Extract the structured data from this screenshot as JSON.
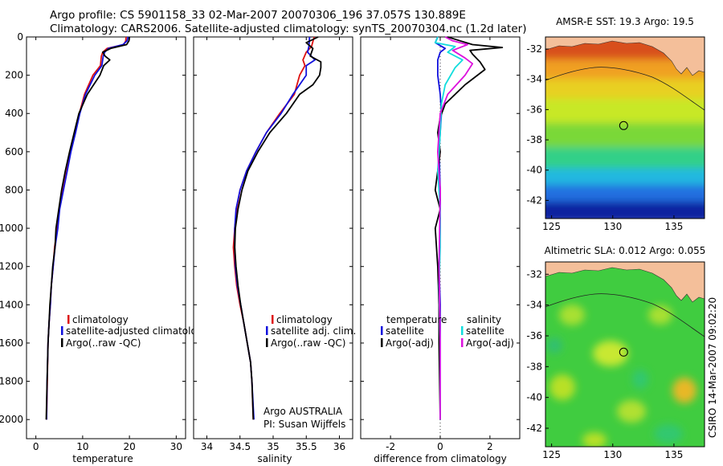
{
  "figure": {
    "title_line1": "Argo profile: CS 5901158_33 02-Mar-2007 20070306_196 37.057S 130.889E",
    "title_line2": "Climatology: CARS2006. Satellite-adjusted climatology: synTS_20070304.nc (1.2d later)",
    "stamp": "CSIRO 14-Mar-2007 09:02:20"
  },
  "colors": {
    "climatology": "#dd1111",
    "satellite": "#1111dd",
    "argo": "#000000",
    "sal_satellite": "#11dddd",
    "sal_argo": "#dd11dd",
    "land": "#f4bf9a"
  },
  "chart_data": [
    {
      "type": "line",
      "id": "temperature",
      "xlabel": "temperature",
      "ylabel": "",
      "xlim": [
        -2,
        32
      ],
      "ylim": [
        2100,
        0
      ],
      "xticks": [
        0,
        10,
        20,
        30
      ],
      "yticks": [
        0,
        200,
        400,
        600,
        800,
        1000,
        1200,
        1400,
        1600,
        1800,
        2000
      ],
      "legend_placement": "lower-left",
      "series": [
        {
          "name": "climatology",
          "color": "#dd1111",
          "x": [
            19.3,
            19.2,
            18.8,
            15.2,
            14.3,
            14.0,
            13.8,
            12.2,
            10.4,
            9.3,
            8.4,
            7.4,
            6.6,
            5.8,
            5.0,
            4.6,
            4.0,
            3.7,
            3.3,
            3.1,
            2.8,
            2.6,
            2.45,
            2.3
          ],
          "y": [
            0,
            20,
            40,
            60,
            80,
            100,
            150,
            200,
            300,
            400,
            500,
            600,
            700,
            800,
            900,
            1000,
            1100,
            1200,
            1300,
            1400,
            1500,
            1600,
            1800,
            2000
          ]
        },
        {
          "name": "satellite-adjusted climatology",
          "color": "#1111dd",
          "x": [
            19.7,
            19.5,
            18.6,
            15.5,
            14.7,
            14.4,
            14.1,
            12.6,
            10.6,
            9.4,
            8.5,
            7.5,
            6.7,
            5.9,
            5.1,
            4.7,
            4.1,
            3.7,
            3.3,
            3.1,
            2.8,
            2.6,
            2.4,
            2.3
          ],
          "y": [
            0,
            20,
            40,
            60,
            80,
            100,
            150,
            200,
            300,
            400,
            500,
            600,
            700,
            800,
            900,
            1000,
            1100,
            1200,
            1300,
            1400,
            1500,
            1600,
            1800,
            2000
          ]
        },
        {
          "name": "Argo(..raw -QC)",
          "color": "#000000",
          "x": [
            20.0,
            19.9,
            19.4,
            16.0,
            14.3,
            14.8,
            15.8,
            14.5,
            13.7,
            11.0,
            9.2,
            8.2,
            7.2,
            6.3,
            5.5,
            4.9,
            4.3,
            4.1,
            3.6,
            3.3,
            3.0,
            2.8,
            2.6,
            2.4,
            2.2
          ],
          "y": [
            0,
            20,
            40,
            60,
            80,
            100,
            120,
            150,
            200,
            300,
            400,
            500,
            600,
            700,
            800,
            900,
            1000,
            1100,
            1200,
            1300,
            1400,
            1500,
            1600,
            1800,
            2000
          ]
        }
      ]
    },
    {
      "type": "line",
      "id": "salinity",
      "xlabel": "salinity",
      "ylabel": "",
      "xlim": [
        33.8,
        36.2
      ],
      "ylim": [
        2100,
        0
      ],
      "xticks": [
        34,
        34.5,
        35,
        35.5,
        36
      ],
      "yticks": [
        0,
        200,
        400,
        600,
        800,
        1000,
        1200,
        1400,
        1600,
        1800,
        2000
      ],
      "legend_placement": "lower-right",
      "annotation": [
        "Argo AUSTRALIA",
        "PI: Susan Wijffels"
      ],
      "series": [
        {
          "name": "climatology",
          "color": "#dd1111",
          "x": [
            35.62,
            35.58,
            35.5,
            35.45,
            35.48,
            35.4,
            35.32,
            35.1,
            34.9,
            34.74,
            34.6,
            34.5,
            34.45,
            34.42,
            34.4,
            34.42,
            34.45,
            34.5,
            34.56,
            34.61,
            34.66,
            34.68,
            34.7
          ],
          "y": [
            0,
            50,
            80,
            120,
            150,
            200,
            300,
            400,
            500,
            600,
            700,
            800,
            900,
            1000,
            1100,
            1200,
            1300,
            1400,
            1500,
            1600,
            1700,
            1800,
            2000
          ]
        },
        {
          "name": "satellite adj. clim.",
          "color": "#1111dd",
          "x": [
            35.55,
            35.54,
            35.52,
            35.63,
            35.5,
            35.5,
            35.3,
            35.12,
            34.9,
            34.74,
            34.6,
            34.5,
            34.44,
            34.42,
            34.42,
            34.43,
            34.46,
            34.51,
            34.56,
            34.61,
            34.66,
            34.68,
            34.71
          ],
          "y": [
            0,
            50,
            80,
            120,
            150,
            200,
            300,
            400,
            500,
            600,
            700,
            800,
            900,
            1000,
            1100,
            1200,
            1300,
            1400,
            1500,
            1600,
            1700,
            1800,
            2000
          ]
        },
        {
          "name": "Argo(..raw -QC)",
          "color": "#000000",
          "x": [
            35.68,
            35.5,
            35.6,
            35.56,
            35.72,
            35.72,
            35.7,
            35.6,
            35.4,
            35.2,
            34.95,
            34.77,
            34.62,
            34.53,
            34.47,
            34.43,
            34.42,
            34.44,
            34.47,
            34.51,
            34.56,
            34.61,
            34.66,
            34.68,
            34.7
          ],
          "y": [
            0,
            30,
            60,
            100,
            130,
            160,
            200,
            250,
            300,
            400,
            500,
            600,
            700,
            800,
            900,
            1000,
            1100,
            1200,
            1300,
            1400,
            1500,
            1600,
            1700,
            1800,
            2000
          ]
        }
      ]
    },
    {
      "type": "line",
      "id": "difference",
      "xlabel": "difference from climatology",
      "ylabel": "",
      "xlim": [
        -3.2,
        3.2
      ],
      "ylim": [
        2100,
        0
      ],
      "xticks": [
        -2,
        0,
        2
      ],
      "yticks": [
        0,
        200,
        400,
        600,
        800,
        1000,
        1200,
        1400,
        1600,
        1800,
        2000
      ],
      "legend_placement": "lower",
      "legend_groups": [
        "temperature",
        "salinity"
      ],
      "series": [
        {
          "name": "satellite",
          "group": "temperature",
          "color": "#1111dd",
          "x": [
            -0.1,
            -0.2,
            0.2,
            0.0,
            -0.1,
            -0.1,
            0.0,
            0.05,
            -0.05,
            0.0,
            0.0,
            -0.05,
            0.0,
            0.0,
            0.0
          ],
          "y": [
            0,
            30,
            60,
            80,
            120,
            200,
            300,
            400,
            600,
            800,
            1000,
            1200,
            1400,
            1600,
            2000
          ]
        },
        {
          "name": "Argo(-adj)",
          "group": "temperature",
          "color": "#000000",
          "x": [
            0.3,
            0.8,
            1.3,
            2.5,
            1.2,
            1.3,
            1.6,
            1.8,
            1.0,
            0.2,
            0.0,
            -0.1,
            0.0,
            -0.2,
            0.0,
            -0.2,
            -0.1,
            -0.05,
            -0.05,
            0.0
          ],
          "y": [
            0,
            20,
            40,
            55,
            70,
            90,
            130,
            170,
            250,
            350,
            420,
            500,
            600,
            800,
            900,
            1000,
            1200,
            1400,
            1600,
            2000
          ]
        },
        {
          "name": "satellite",
          "group": "salinity",
          "color": "#11dddd",
          "x": [
            -0.1,
            -0.2,
            0.6,
            0.3,
            0.9,
            0.6,
            0.2,
            0.05,
            0.0,
            -0.1,
            0.0,
            0.0,
            -0.05,
            0.0,
            0.0
          ],
          "y": [
            0,
            30,
            50,
            80,
            120,
            160,
            250,
            350,
            500,
            700,
            900,
            1100,
            1300,
            1600,
            2000
          ]
        },
        {
          "name": "Argo(-adj)",
          "group": "salinity",
          "color": "#dd11dd",
          "x": [
            0.2,
            0.5,
            1.1,
            0.5,
            1.0,
            1.3,
            1.0,
            0.3,
            0.0,
            -0.1,
            0.0,
            -0.05,
            0.0,
            0.0
          ],
          "y": [
            0,
            20,
            40,
            70,
            110,
            140,
            200,
            300,
            400,
            600,
            800,
            1200,
            1600,
            2000
          ]
        }
      ]
    },
    {
      "type": "heatmap",
      "id": "sst_map",
      "title": "AMSR-E SST: 19.3  Argo: 19.5",
      "xlim": [
        124.5,
        137.5
      ],
      "ylim": [
        -43.2,
        -31.2
      ],
      "xticks": [
        125,
        130,
        135
      ],
      "yticks": [
        -32,
        -34,
        -36,
        -38,
        -40,
        -42
      ],
      "marker": {
        "lon": 130.889,
        "lat": -37.057
      },
      "color_bands": [
        {
          "lat_top": -31.2,
          "lat_bottom": -33.0,
          "color": "#d8501e"
        },
        {
          "lat_top": -33.0,
          "lat_bottom": -34.3,
          "color": "#f0a020"
        },
        {
          "lat_top": -34.3,
          "lat_bottom": -35.6,
          "color": "#e8d020"
        },
        {
          "lat_top": -35.6,
          "lat_bottom": -37.2,
          "color": "#c8e828"
        },
        {
          "lat_top": -37.2,
          "lat_bottom": -38.8,
          "color": "#7ad838"
        },
        {
          "lat_top": -38.8,
          "lat_bottom": -40.2,
          "color": "#30d088"
        },
        {
          "lat_top": -40.2,
          "lat_bottom": -41.3,
          "color": "#20b8e0"
        },
        {
          "lat_top": -41.3,
          "lat_bottom": -42.4,
          "color": "#2070e0"
        },
        {
          "lat_top": -42.4,
          "lat_bottom": -43.2,
          "color": "#1020a0"
        }
      ]
    },
    {
      "type": "heatmap",
      "id": "sla_map",
      "title": "Altimetric SLA: 0.012  Argo: 0.055",
      "xlim": [
        124.5,
        137.5
      ],
      "ylim": [
        -43.2,
        -31.2
      ],
      "xticks": [
        125,
        130,
        135
      ],
      "yticks": [
        -32,
        -34,
        -36,
        -38,
        -40,
        -42
      ],
      "marker": {
        "lon": 130.889,
        "lat": -37.057
      },
      "color_bands": [
        {
          "lat_top": -31.2,
          "lat_bottom": -43.2,
          "color": "#40cc40"
        }
      ]
    }
  ]
}
